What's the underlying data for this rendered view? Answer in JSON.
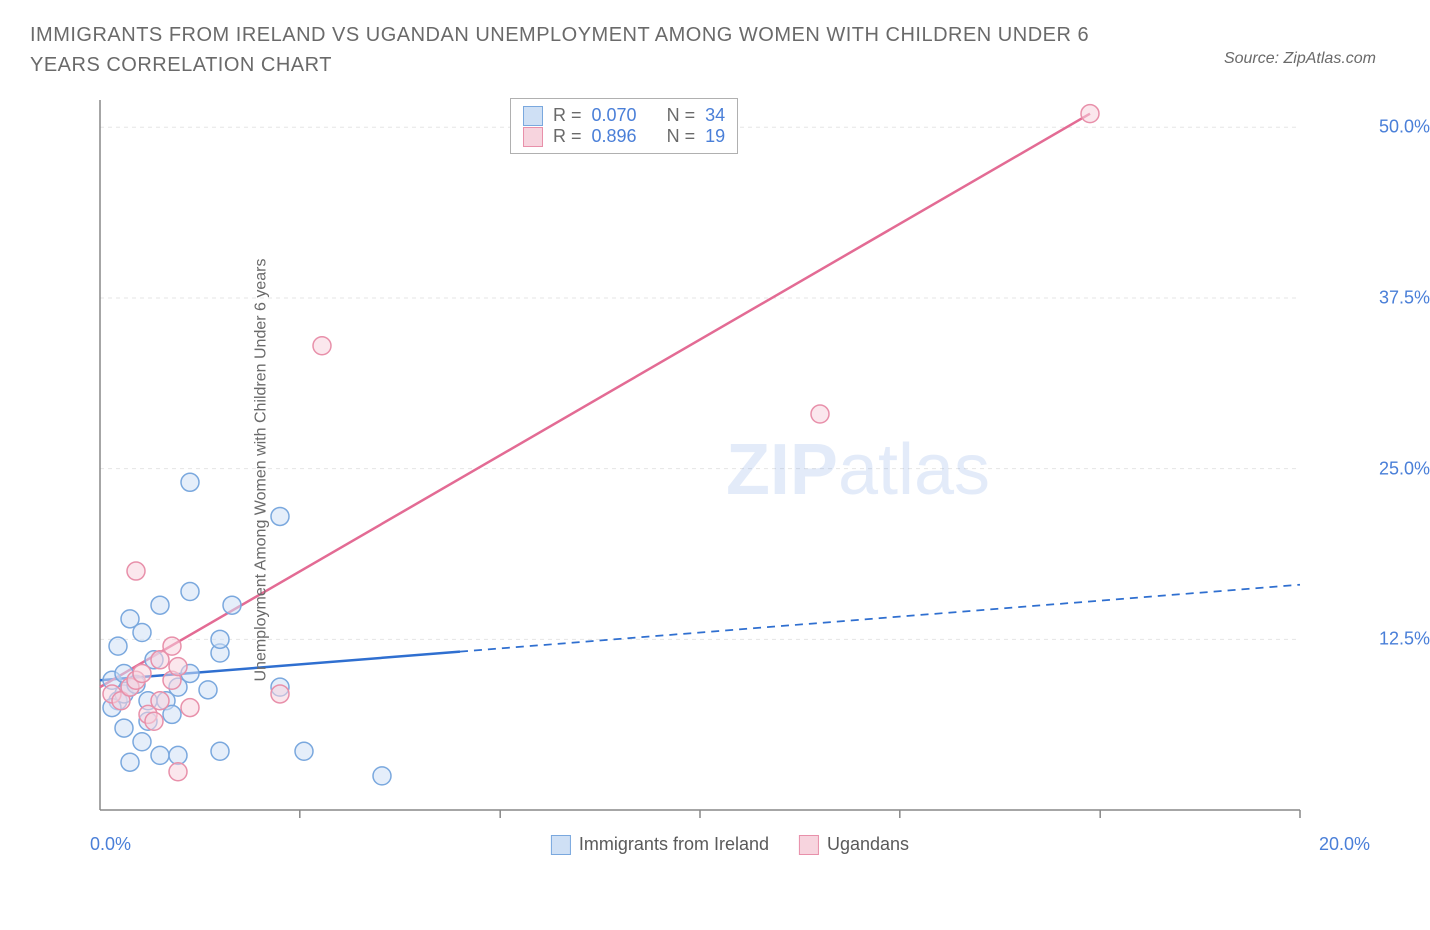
{
  "title": "IMMIGRANTS FROM IRELAND VS UGANDAN UNEMPLOYMENT AMONG WOMEN WITH CHILDREN UNDER 6 YEARS CORRELATION CHART",
  "source": "Source: ZipAtlas.com",
  "ylabel": "Unemployment Among Women with Children Under 6 years",
  "watermark_zip": "ZIP",
  "watermark_atlas": "atlas",
  "chart": {
    "type": "scatter",
    "xlim": [
      0,
      20
    ],
    "ylim": [
      0,
      52
    ],
    "xtick_label_left": "0.0%",
    "xtick_label_right": "20.0%",
    "ytick_labels": [
      "12.5%",
      "25.0%",
      "37.5%",
      "50.0%"
    ],
    "ytick_values": [
      12.5,
      25.0,
      37.5,
      50.0
    ],
    "xtick_values": [
      3.33,
      6.67,
      10,
      13.33,
      16.67,
      20
    ],
    "grid_color": "#e5e5e5",
    "axis_color": "#888888",
    "background_color": "#ffffff",
    "marker_radius": 9,
    "marker_stroke_width": 1.5,
    "series": [
      {
        "name": "Immigrants from Ireland",
        "fill": "#cfe0f5",
        "stroke": "#7aa8de",
        "fill_opacity": 0.55,
        "R": "0.070",
        "N": "34",
        "trendline": {
          "x1": 0,
          "y1": 9.5,
          "x2": 20,
          "y2": 16.5,
          "solid_until_x": 6,
          "color": "#2f6fd0",
          "width": 2.5
        },
        "points": [
          [
            0.2,
            9.5
          ],
          [
            0.3,
            8.0
          ],
          [
            0.4,
            8.5
          ],
          [
            0.5,
            9.0
          ],
          [
            0.4,
            10.0
          ],
          [
            0.6,
            9.2
          ],
          [
            0.8,
            8.0
          ],
          [
            0.3,
            12.0
          ],
          [
            0.5,
            14.0
          ],
          [
            0.7,
            13.0
          ],
          [
            0.4,
            6.0
          ],
          [
            0.7,
            5.0
          ],
          [
            1.0,
            4.0
          ],
          [
            0.5,
            3.5
          ],
          [
            1.3,
            4.0
          ],
          [
            2.0,
            4.3
          ],
          [
            3.4,
            4.3
          ],
          [
            4.7,
            2.5
          ],
          [
            1.0,
            15.0
          ],
          [
            1.5,
            16.0
          ],
          [
            1.3,
            9.0
          ],
          [
            1.5,
            10.0
          ],
          [
            2.0,
            11.5
          ],
          [
            2.0,
            12.5
          ],
          [
            2.2,
            15.0
          ],
          [
            1.1,
            8.0
          ],
          [
            1.2,
            7.0
          ],
          [
            0.8,
            6.5
          ],
          [
            1.5,
            24.0
          ],
          [
            3.0,
            21.5
          ],
          [
            3.0,
            9.0
          ],
          [
            1.8,
            8.8
          ],
          [
            0.9,
            11.0
          ],
          [
            0.2,
            7.5
          ]
        ]
      },
      {
        "name": "Ugandans",
        "fill": "#f7d4de",
        "stroke": "#e890aa",
        "fill_opacity": 0.55,
        "R": "0.896",
        "N": "19",
        "trendline": {
          "x1": 0,
          "y1": 9.0,
          "x2": 16.5,
          "y2": 51.0,
          "solid_until_x": 16.5,
          "color": "#e36b94",
          "width": 2.5
        },
        "points": [
          [
            0.2,
            8.5
          ],
          [
            0.35,
            8.0
          ],
          [
            0.5,
            9.0
          ],
          [
            0.6,
            9.5
          ],
          [
            0.7,
            10.0
          ],
          [
            0.8,
            7.0
          ],
          [
            1.0,
            8.0
          ],
          [
            1.2,
            9.5
          ],
          [
            1.0,
            11.0
          ],
          [
            1.3,
            10.5
          ],
          [
            1.5,
            7.5
          ],
          [
            0.9,
            6.5
          ],
          [
            1.3,
            2.8
          ],
          [
            0.6,
            17.5
          ],
          [
            3.0,
            8.5
          ],
          [
            1.2,
            12.0
          ],
          [
            3.7,
            34.0
          ],
          [
            12.0,
            29.0
          ],
          [
            16.5,
            51.0
          ]
        ]
      }
    ],
    "legend_bottom": [
      {
        "label": "Immigrants from Ireland",
        "fill": "#cfe0f5",
        "stroke": "#7aa8de"
      },
      {
        "label": "Ugandans",
        "fill": "#f7d4de",
        "stroke": "#e890aa"
      }
    ]
  }
}
